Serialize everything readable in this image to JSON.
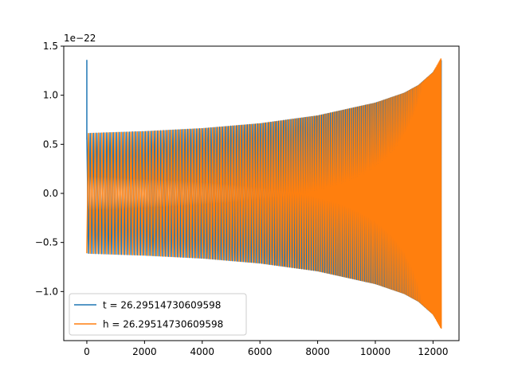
{
  "chart_data": {
    "type": "line",
    "title": "",
    "xlabel": "",
    "ylabel": "",
    "y_offset_text": "1e−22",
    "xlim": [
      -800,
      12900
    ],
    "ylim": [
      -1.5,
      1.5
    ],
    "y_scale_exponent": -22,
    "x_ticks": [
      0,
      2000,
      4000,
      6000,
      8000,
      10000,
      12000
    ],
    "x_tick_labels": [
      "0",
      "2000",
      "4000",
      "6000",
      "8000",
      "10000",
      "12000"
    ],
    "y_ticks": [
      -1.0,
      -0.5,
      0.0,
      0.5,
      1.0,
      1.5
    ],
    "y_tick_labels": [
      "−1.0",
      "−0.5",
      "0.0",
      "0.5",
      "1.0",
      "1.5"
    ],
    "grid": false,
    "legend_position": "lower-left",
    "series": [
      {
        "name": "t = 26.29514730609598",
        "color": "#1f77b4",
        "signal": "chirp",
        "x_range": [
          0,
          12290
        ],
        "spike": {
          "x": 0,
          "y_max": 1.36
        },
        "envelope": [
          [
            0,
            0.61
          ],
          [
            2000,
            0.63
          ],
          [
            4000,
            0.66
          ],
          [
            6000,
            0.71
          ],
          [
            8000,
            0.79
          ],
          [
            10000,
            0.92
          ],
          [
            11000,
            1.02
          ],
          [
            11500,
            1.1
          ],
          [
            12000,
            1.23
          ],
          [
            12290,
            1.36
          ]
        ]
      },
      {
        "name": "h = 26.29514730609598",
        "color": "#ff7f0e",
        "signal": "chirp",
        "x_range": [
          0,
          12290
        ],
        "envelope": [
          [
            0,
            0.61
          ],
          [
            2000,
            0.63
          ],
          [
            4000,
            0.66
          ],
          [
            6000,
            0.71
          ],
          [
            8000,
            0.79
          ],
          [
            10000,
            0.92
          ],
          [
            11000,
            1.02
          ],
          [
            11500,
            1.1
          ],
          [
            12000,
            1.23
          ],
          [
            12290,
            1.38
          ]
        ]
      }
    ]
  }
}
